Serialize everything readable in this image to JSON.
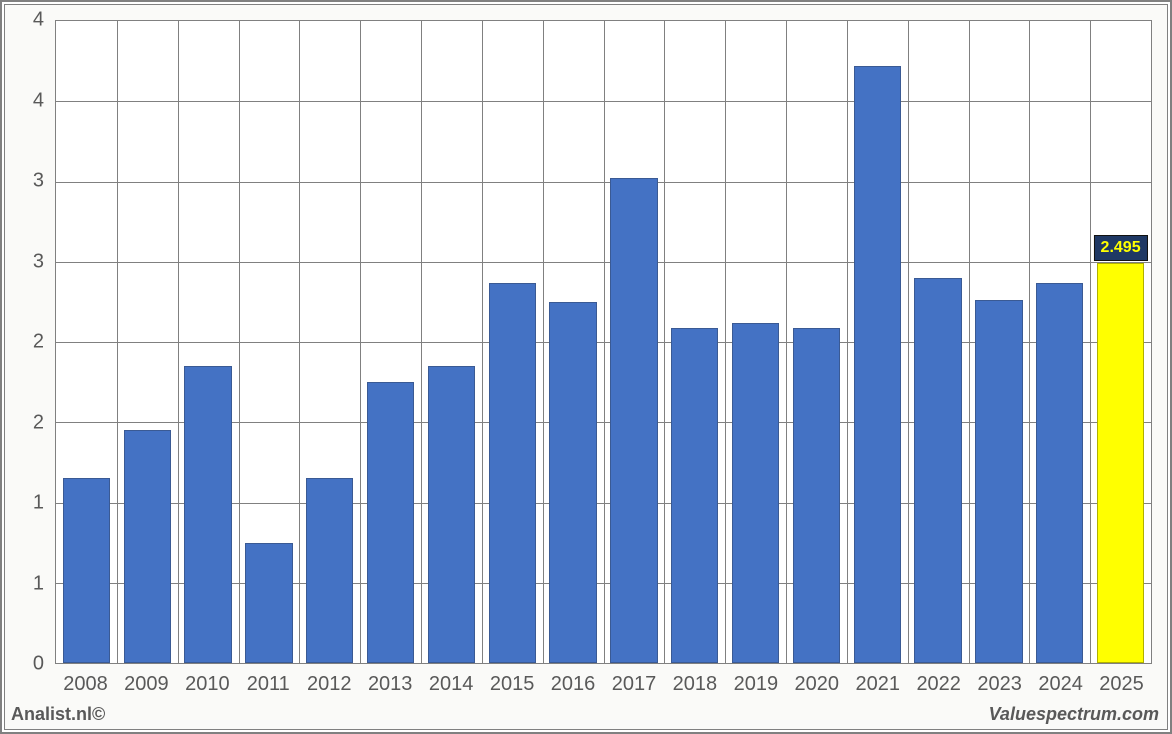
{
  "chart": {
    "type": "bar",
    "categories": [
      "2008",
      "2009",
      "2010",
      "2011",
      "2012",
      "2013",
      "2014",
      "2015",
      "2016",
      "2017",
      "2018",
      "2019",
      "2020",
      "2021",
      "2022",
      "2023",
      "2024",
      "2025"
    ],
    "values": [
      1.15,
      1.45,
      1.85,
      0.75,
      1.15,
      1.75,
      1.85,
      2.37,
      2.25,
      3.02,
      2.09,
      2.12,
      2.09,
      3.72,
      2.4,
      2.26,
      2.37,
      2.495
    ],
    "bar_colors": [
      "#4472c4",
      "#4472c4",
      "#4472c4",
      "#4472c4",
      "#4472c4",
      "#4472c4",
      "#4472c4",
      "#4472c4",
      "#4472c4",
      "#4472c4",
      "#4472c4",
      "#4472c4",
      "#4472c4",
      "#4472c4",
      "#4472c4",
      "#4472c4",
      "#4472c4",
      "#ffff00"
    ],
    "bar_border_color": "#3a5a94",
    "y_tick_labels": [
      "0",
      "1",
      "1",
      "2",
      "2",
      "3",
      "3",
      "4",
      "4"
    ],
    "y_steps": 8,
    "grid_color": "#808080",
    "background_color": "#ffffff",
    "plot_border_color": "#808080",
    "bar_width_ratio": 0.78,
    "tick_label_fontsize": 20,
    "tick_label_color": "#595959",
    "label_fontsize": 20,
    "highlight_label": {
      "index": 17,
      "text": "2.495",
      "bg": "#1f3864",
      "fg": "#ffff00",
      "fontsize": 16
    }
  },
  "footer": {
    "left": "Analist.nl©",
    "right": "Valuespectrum.com"
  }
}
